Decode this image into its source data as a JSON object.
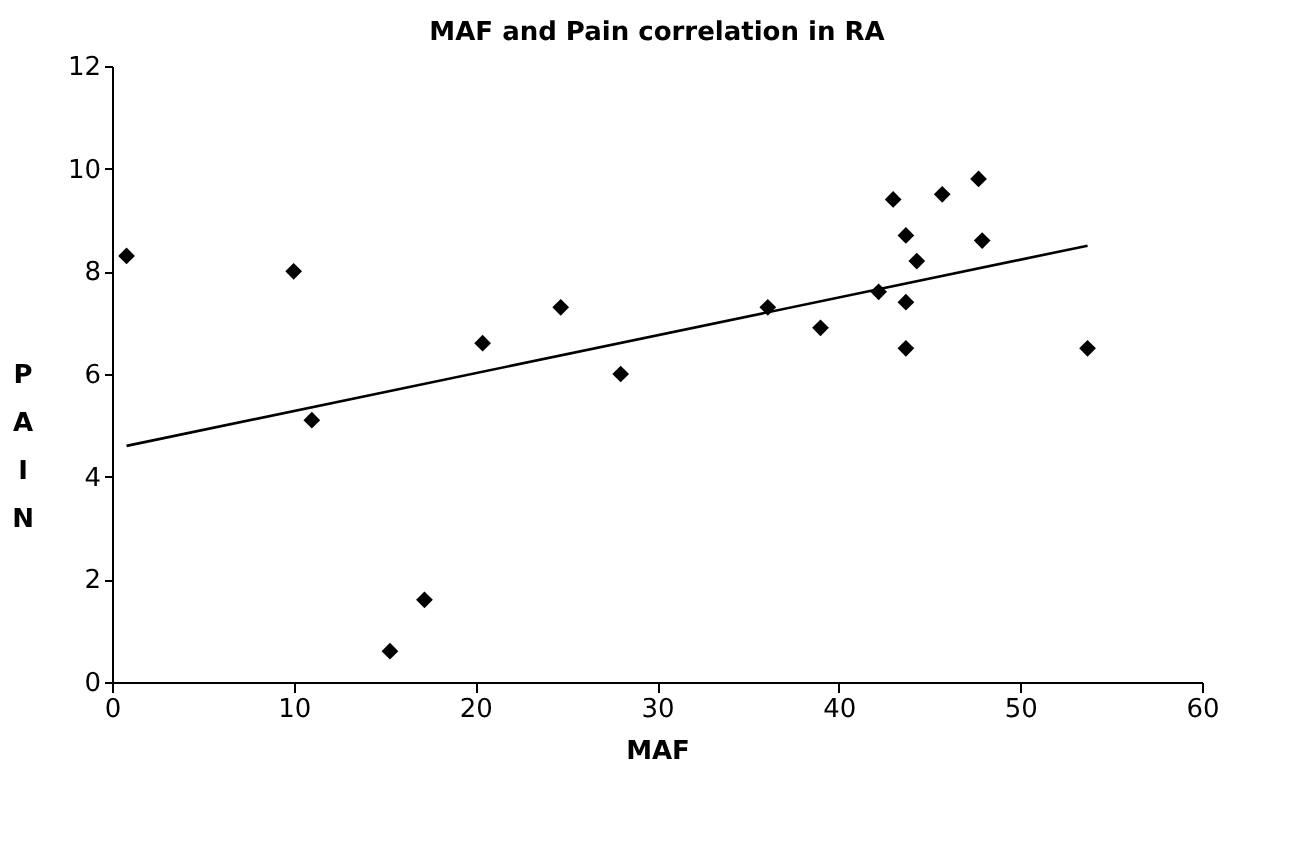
{
  "chart_data": {
    "type": "scatter",
    "title": "MAF and Pain correlation in RA",
    "xlabel": "MAF",
    "ylabel": "PAIN",
    "x": [
      0.8,
      10,
      11,
      15.3,
      17.2,
      20.4,
      24.7,
      28,
      36.1,
      39,
      42.2,
      43,
      43.7,
      43.7,
      43.7,
      44.3,
      45.7,
      47.7,
      47.9,
      53.7
    ],
    "series": [
      {
        "color": "#000000",
        "marker": "diamond",
        "values": [
          8.3,
          8.0,
          5.1,
          0.6,
          1.6,
          6.6,
          7.3,
          6.0,
          7.3,
          6.9,
          7.6,
          9.4,
          8.7,
          7.4,
          6.5,
          8.2,
          9.5,
          9.8,
          8.6,
          6.5
        ]
      },
      {
        "type": "line",
        "color": "#000000",
        "x": [
          0.8,
          53.7
        ],
        "values": [
          4.6,
          8.5
        ],
        "line_style": "solid"
      }
    ],
    "xlim": [
      0,
      60
    ],
    "xticks": [
      0,
      10,
      20,
      30,
      40,
      50,
      60
    ],
    "ylim": [
      0,
      12
    ],
    "yticks": [
      0,
      2,
      4,
      6,
      8,
      10,
      12
    ],
    "grid": false
  }
}
